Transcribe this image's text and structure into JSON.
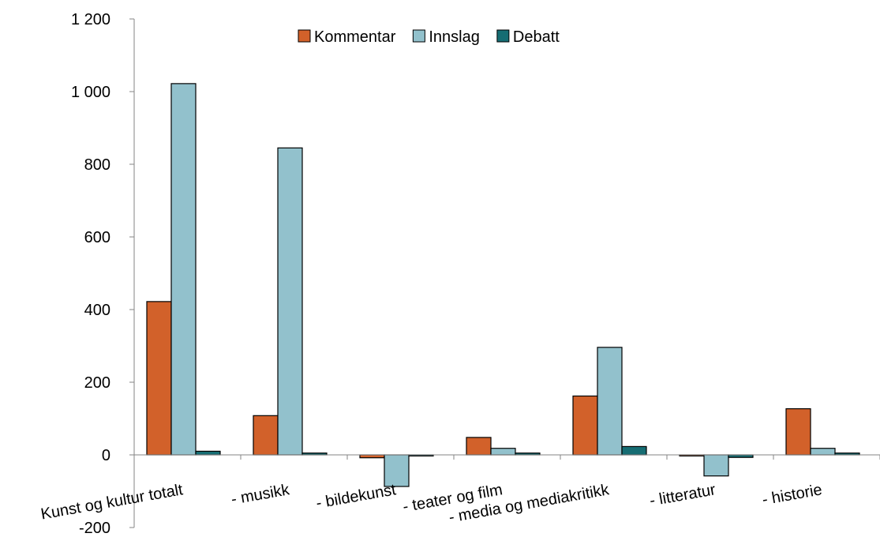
{
  "chart_data": {
    "type": "bar",
    "title": "",
    "xlabel": "",
    "ylabel": "",
    "ylim": [
      -200,
      1200
    ],
    "yticks": [
      -200,
      0,
      200,
      400,
      600,
      800,
      1000,
      1200
    ],
    "ytick_labels": [
      "-200",
      "0",
      "200",
      "400",
      "600",
      "800",
      "1 000",
      "1 200"
    ],
    "grid": false,
    "legend_position": "top-center",
    "categories": [
      "Kunst og kultur totalt",
      "- musikk",
      "- bildekunst",
      "- teater og film",
      "- media og mediakritikk",
      "- litteratur",
      "- historie"
    ],
    "series": [
      {
        "name": "Kommentar",
        "color": "#d2612a",
        "values": [
          422,
          108,
          -8,
          48,
          162,
          -3,
          127
        ]
      },
      {
        "name": "Innslag",
        "color": "#92c1cc",
        "values": [
          1022,
          845,
          -87,
          18,
          296,
          -58,
          18
        ]
      },
      {
        "name": "Debatt",
        "color": "#166d73",
        "values": [
          10,
          5,
          -3,
          5,
          23,
          -7,
          5
        ]
      }
    ]
  }
}
